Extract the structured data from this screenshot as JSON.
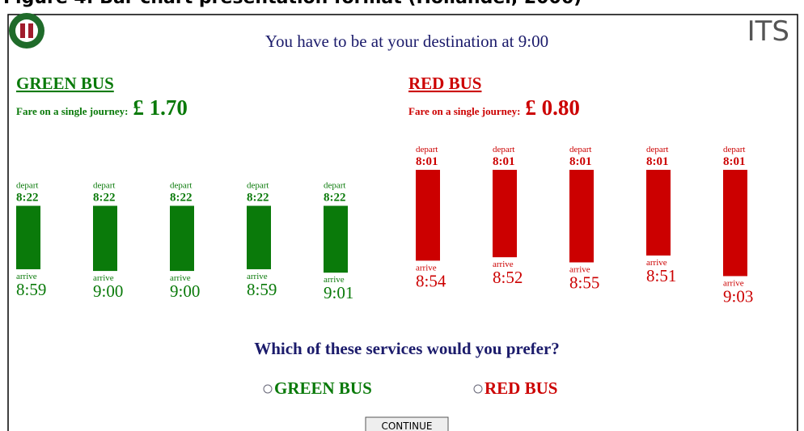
{
  "caption": "Figure 4: Bar chart presentation format (Hollander, 2006)",
  "heading": "You have to be at your destination at 9:00",
  "logo_text": "ITS",
  "buses": [
    {
      "name": "GREEN BUS",
      "fare_label": "Fare on a single journey:",
      "fare": "£ 1.70",
      "color": "#0a7a0a",
      "services": [
        {
          "depart_label": "depart",
          "depart": "8:22",
          "arrive_label": "arrive",
          "arrive": "8:59"
        },
        {
          "depart_label": "depart",
          "depart": "8:22",
          "arrive_label": "arrive",
          "arrive": "9:00"
        },
        {
          "depart_label": "depart",
          "depart": "8:22",
          "arrive_label": "arrive",
          "arrive": "9:00"
        },
        {
          "depart_label": "depart",
          "depart": "8:22",
          "arrive_label": "arrive",
          "arrive": "8:59"
        },
        {
          "depart_label": "depart",
          "depart": "8:22",
          "arrive_label": "arrive",
          "arrive": "9:01"
        }
      ]
    },
    {
      "name": "RED BUS",
      "fare_label": "Fare on a single journey:",
      "fare": "£ 0.80",
      "color": "#cc0000",
      "services": [
        {
          "depart_label": "depart",
          "depart": "8:01",
          "arrive_label": "arrive",
          "arrive": "8:54"
        },
        {
          "depart_label": "depart",
          "depart": "8:01",
          "arrive_label": "arrive",
          "arrive": "8:52"
        },
        {
          "depart_label": "depart",
          "depart": "8:01",
          "arrive_label": "arrive",
          "arrive": "8:55"
        },
        {
          "depart_label": "depart",
          "depart": "8:01",
          "arrive_label": "arrive",
          "arrive": "8:51"
        },
        {
          "depart_label": "depart",
          "depart": "8:01",
          "arrive_label": "arrive",
          "arrive": "9:03"
        }
      ]
    }
  ],
  "question": "Which of these services would you prefer?",
  "options": [
    "GREEN BUS",
    "RED BUS"
  ],
  "button": "CONTINUE"
}
